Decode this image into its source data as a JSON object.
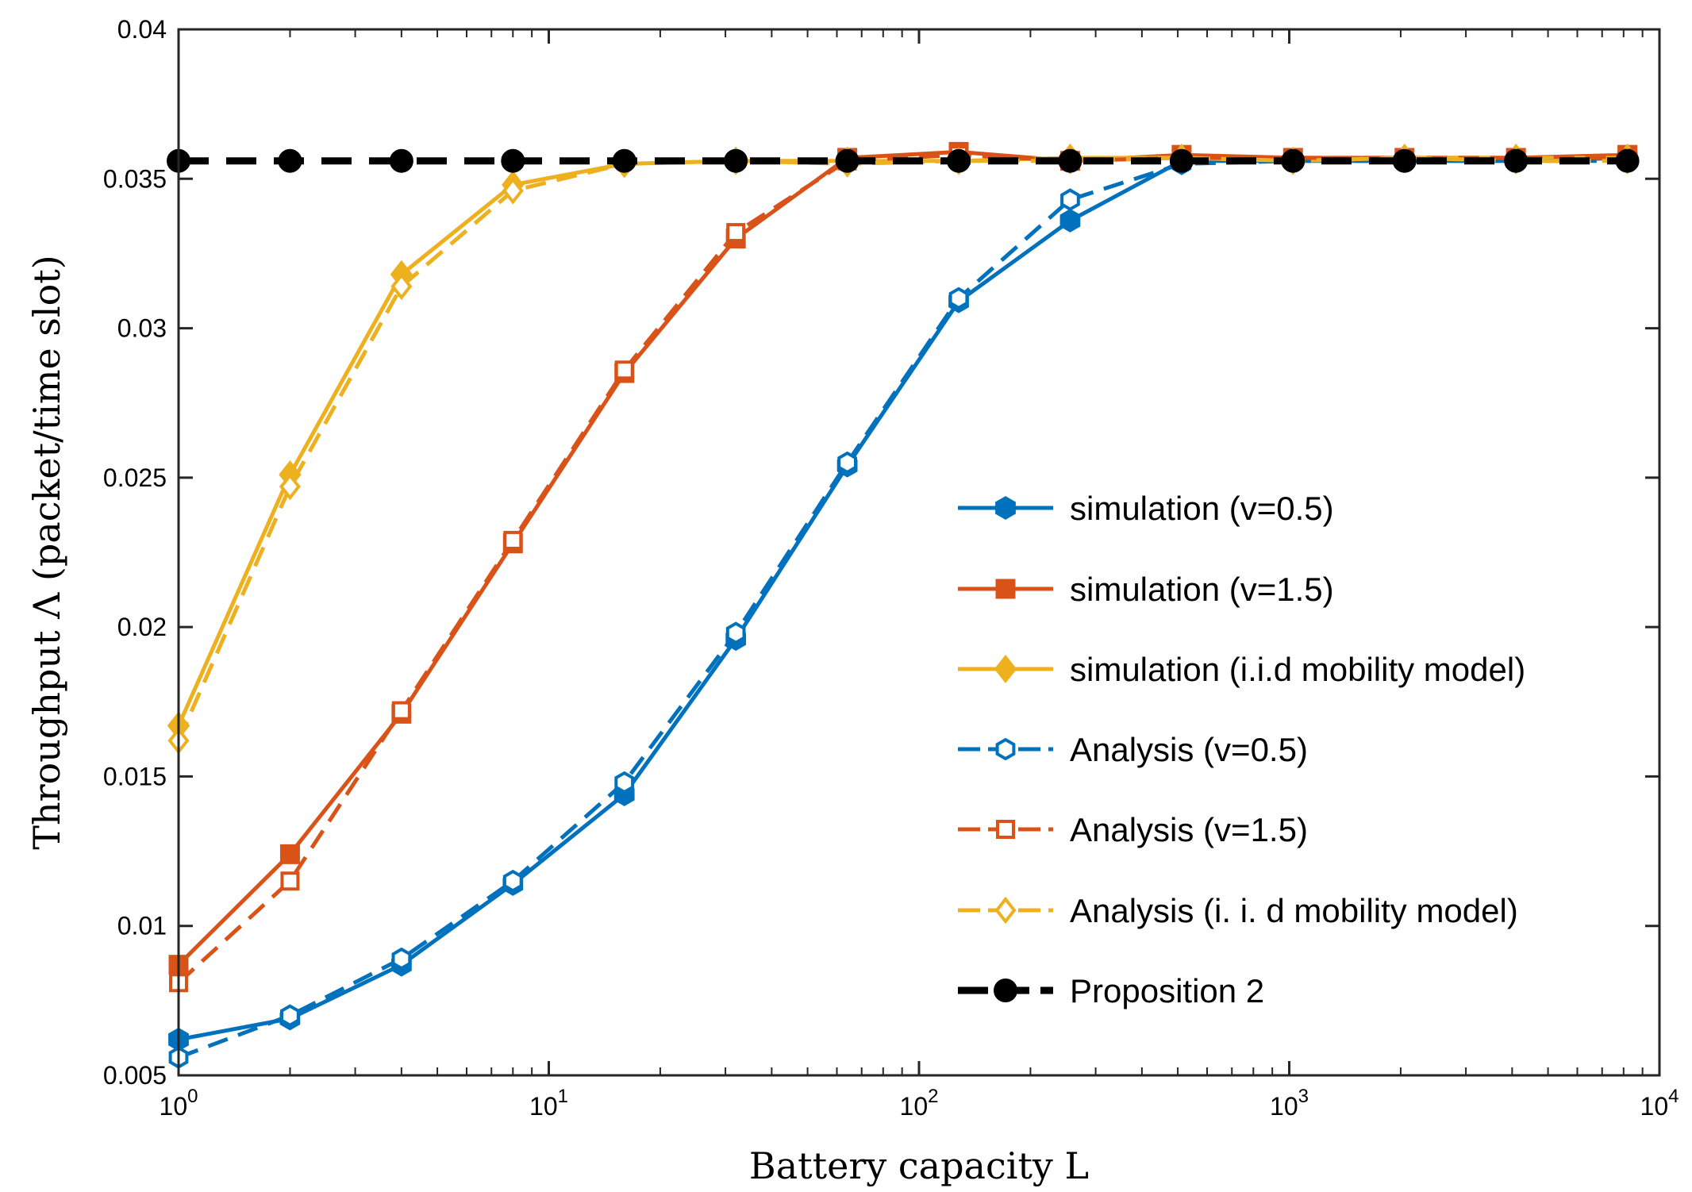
{
  "chart_data": {
    "type": "line",
    "xlabel": "Battery capacity L",
    "ylabel": "Throughput Λ (packet/time slot)",
    "xscale": "log",
    "xlim": [
      1,
      10000
    ],
    "ylim": [
      0.005,
      0.04
    ],
    "grid": false,
    "legend_position": "bottom-right",
    "x_ticks": [
      {
        "value": 1,
        "base": "10",
        "exp": "0"
      },
      {
        "value": 10,
        "base": "10",
        "exp": "1"
      },
      {
        "value": 100,
        "base": "10",
        "exp": "2"
      },
      {
        "value": 1000,
        "base": "10",
        "exp": "3"
      },
      {
        "value": 10000,
        "base": "10",
        "exp": "4"
      }
    ],
    "y_ticks": [
      {
        "value": 0.005,
        "label": "0.005"
      },
      {
        "value": 0.01,
        "label": "0.01"
      },
      {
        "value": 0.015,
        "label": "0.015"
      },
      {
        "value": 0.02,
        "label": "0.02"
      },
      {
        "value": 0.025,
        "label": "0.025"
      },
      {
        "value": 0.03,
        "label": "0.03"
      },
      {
        "value": 0.035,
        "label": "0.035"
      },
      {
        "value": 0.04,
        "label": "0.04"
      }
    ],
    "x": [
      1,
      2,
      4,
      8,
      16,
      32,
      64,
      128,
      256,
      512,
      1024,
      2048,
      4096,
      8192
    ],
    "series": [
      {
        "name": "simulation (v=0.5)",
        "color": "#0072BD",
        "dash": "solid",
        "marker": "hexagon-filled",
        "values": [
          0.0062,
          0.0069,
          0.0087,
          0.0114,
          0.0144,
          0.0196,
          0.0254,
          0.0309,
          0.0336,
          0.0356,
          0.0356,
          0.0356,
          0.0356,
          0.0357
        ]
      },
      {
        "name": "simulation (v=1.5)",
        "color": "#D95319",
        "dash": "solid",
        "marker": "square-filled",
        "values": [
          0.0087,
          0.0124,
          0.0171,
          0.0228,
          0.0285,
          0.033,
          0.0357,
          0.0359,
          0.0356,
          0.0358,
          0.0357,
          0.0357,
          0.0357,
          0.0358
        ]
      },
      {
        "name": "simulation (i.i.d mobility model)",
        "color": "#EDB120",
        "dash": "solid",
        "marker": "diamond-filled",
        "values": [
          0.0167,
          0.0251,
          0.0318,
          0.0348,
          0.0355,
          0.0356,
          0.0356,
          0.0356,
          0.0357,
          0.0357,
          0.0356,
          0.0357,
          0.0357,
          0.0357
        ]
      },
      {
        "name": "Analysis (v=0.5)",
        "color": "#0072BD",
        "dash": "dashed",
        "marker": "hexagon-open",
        "values": [
          0.0056,
          0.007,
          0.0089,
          0.0115,
          0.0148,
          0.0198,
          0.0255,
          0.031,
          0.0343,
          0.0355,
          0.0356,
          0.0356,
          0.0356,
          0.0356
        ]
      },
      {
        "name": "Analysis (v=1.5)",
        "color": "#D95319",
        "dash": "dashed",
        "marker": "square-open",
        "values": [
          0.0081,
          0.0115,
          0.0172,
          0.0229,
          0.0286,
          0.0332,
          0.0356,
          0.0358,
          0.0356,
          0.0357,
          0.0357,
          0.0357,
          0.0357,
          0.0357
        ]
      },
      {
        "name": "Analysis (i. i. d mobility model)",
        "color": "#EDB120",
        "dash": "dashed",
        "marker": "diamond-open",
        "values": [
          0.0162,
          0.0247,
          0.0314,
          0.0346,
          0.0355,
          0.0356,
          0.0355,
          0.0356,
          0.0356,
          0.0357,
          0.0356,
          0.0357,
          0.0356,
          0.0356
        ]
      },
      {
        "name": "Proposition 2",
        "color": "#000000",
        "dash": "dashed",
        "marker": "circle-filled",
        "values": [
          0.0356,
          0.0356,
          0.0356,
          0.0356,
          0.0356,
          0.0356,
          0.0356,
          0.0356,
          0.0356,
          0.0356,
          0.0356,
          0.0356,
          0.0356,
          0.0356
        ]
      }
    ]
  }
}
